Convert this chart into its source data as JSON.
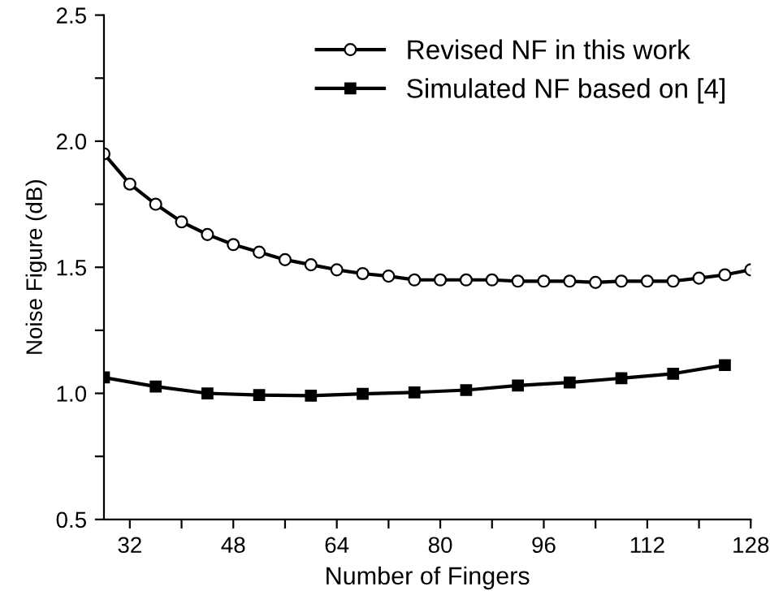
{
  "chart_data": {
    "type": "line",
    "xlabel": "Number of Fingers",
    "ylabel": "Noise Figure (dB)",
    "xlim": [
      28,
      128
    ],
    "ylim": [
      0.5,
      2.5
    ],
    "xticks": [
      32,
      {
        "value": 40,
        "label": null
      },
      48,
      {
        "value": 56,
        "label": null
      },
      64,
      {
        "value": 72,
        "label": null
      },
      80,
      {
        "value": 88,
        "label": null
      },
      96,
      {
        "value": 104,
        "label": null
      },
      112,
      {
        "value": 120,
        "label": null
      },
      128
    ],
    "yticks": [
      0.5,
      {
        "value": 0.75,
        "label": null
      },
      {
        "value": 1,
        "label": "1.0"
      },
      {
        "value": 1.25,
        "label": null
      },
      1.5,
      {
        "value": 1.75,
        "label": null
      },
      {
        "value": 2,
        "label": "2.0"
      },
      {
        "value": 2.25,
        "label": null
      },
      2.5
    ],
    "grid": false,
    "legend": "top right",
    "line_style": "solid",
    "series": [
      {
        "name": "Revised NF in this work",
        "color": "#000000",
        "marker": "circle",
        "x": [
          28,
          32,
          36,
          40,
          44,
          48,
          52,
          56,
          60,
          64,
          68,
          72,
          76,
          80,
          84,
          88,
          92,
          96,
          100,
          104,
          108,
          112,
          116,
          120,
          124,
          128
        ],
        "values": [
          1.95,
          1.83,
          1.75,
          1.68,
          1.63,
          1.59,
          1.56,
          1.53,
          1.51,
          1.49,
          1.475,
          1.465,
          1.45,
          1.45,
          1.45,
          1.45,
          1.445,
          1.445,
          1.445,
          1.44,
          1.445,
          1.445,
          1.445,
          1.457,
          1.47,
          1.49
        ]
      },
      {
        "name": "Simulated NF based on [4]",
        "color": "#000000",
        "marker": "square",
        "x": [
          28,
          36,
          44,
          52,
          60,
          68,
          76,
          84,
          92,
          100,
          108,
          116,
          124
        ],
        "values": [
          1.063,
          1.027,
          1.0,
          0.993,
          0.991,
          0.998,
          1.004,
          1.013,
          1.031,
          1.043,
          1.06,
          1.078,
          1.112
        ]
      }
    ]
  }
}
